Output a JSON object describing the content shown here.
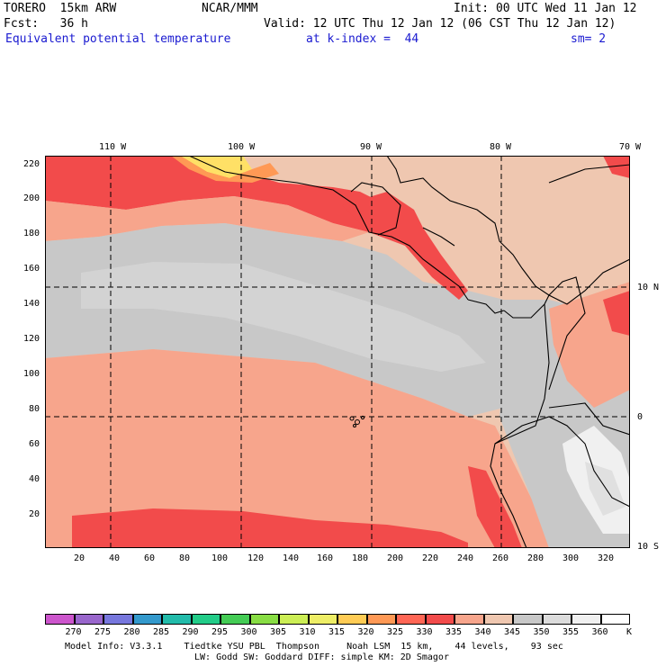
{
  "header": {
    "model": "TORERO  15km ARW",
    "org": "NCAR/MMM",
    "init": "Init: 00 UTC Wed 11 Jan 12",
    "fcst": "Fcst:   36 h",
    "valid": "Valid: 12 UTC Thu 12 Jan 12 (06 CST Thu 12 Jan 12)",
    "field": "Equivalent potential temperature",
    "level": "at k-index =  44",
    "smooth": "sm= 2"
  },
  "axes": {
    "top_lon_labels": [
      "110 W",
      "100 W",
      "90 W",
      "80 W",
      "70 W"
    ],
    "right_lat_labels": [
      "10 N",
      "0",
      "10 S"
    ],
    "left_y_ticks": [
      "220",
      "200",
      "180",
      "160",
      "140",
      "120",
      "100",
      "80",
      "60",
      "40",
      "20"
    ],
    "bottom_x_ticks": [
      "20",
      "40",
      "60",
      "80",
      "100",
      "120",
      "140",
      "160",
      "180",
      "200",
      "220",
      "240",
      "260",
      "280",
      "300",
      "320"
    ]
  },
  "colorbar": {
    "levels": [
      "270",
      "275",
      "280",
      "285",
      "290",
      "295",
      "300",
      "305",
      "310",
      "315",
      "320",
      "325",
      "330",
      "335",
      "340",
      "345",
      "350",
      "355",
      "360"
    ],
    "unit": "K",
    "colors": [
      "#cc55cc",
      "#9966cc",
      "#7777dd",
      "#3399cc",
      "#22bbaa",
      "#22cc88",
      "#44cc55",
      "#88dd44",
      "#ccee55",
      "#eeee66",
      "#ffcc55",
      "#ff9955",
      "#ff6655",
      "#f24b4b",
      "#f7a58c",
      "#efc7b0",
      "#c8c8c8",
      "#dcdcdc",
      "#f0f0f0"
    ]
  },
  "footer": {
    "line1": "Model Info: V3.3.1    Tiedtke YSU PBL  Thompson     Noah LSM  15 km,    44 levels,    93 sec",
    "line2": "LW: Godd SW: Goddard DIFF: simple KM: 2D Smagor"
  },
  "map_colors": {
    "red": "#f24b4b",
    "salmon": "#f7a58c",
    "peach": "#efc7b0",
    "gray": "#c8c8c8",
    "lightgray": "#dcdcdc",
    "white": "#f0f0f0",
    "yellow": "#ffe066",
    "orange": "#ff9955"
  }
}
